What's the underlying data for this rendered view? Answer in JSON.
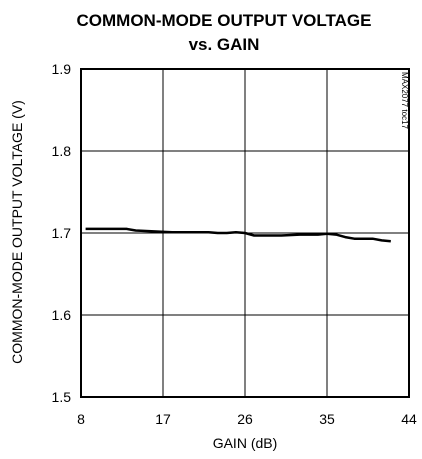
{
  "chart_data": {
    "type": "line",
    "title_line1": "COMMON-MODE OUTPUT VOLTAGE",
    "title_line2": "vs. GAIN",
    "xlabel": "GAIN (dB)",
    "ylabel": "COMMON-MODE OUTPUT VOLTAGE (V)",
    "figure_id": "MAX2077 toc17",
    "xlim": [
      8,
      44
    ],
    "ylim": [
      1.5,
      1.9
    ],
    "xticks": [
      8,
      17,
      26,
      35,
      44
    ],
    "yticks": [
      1.5,
      1.6,
      1.7,
      1.8,
      1.9
    ],
    "xtick_labels": [
      "8",
      "17",
      "26",
      "35",
      "44"
    ],
    "ytick_labels": [
      "1.5",
      "1.6",
      "1.7",
      "1.8",
      "1.9"
    ],
    "grid": true,
    "series": [
      {
        "x": [
          8.5,
          10,
          12,
          13,
          14,
          16,
          18,
          20,
          22,
          23,
          24,
          25,
          26,
          27,
          28,
          30,
          32,
          34,
          35,
          36,
          37,
          38,
          40,
          41,
          42
        ],
        "y": [
          1.705,
          1.705,
          1.705,
          1.705,
          1.703,
          1.702,
          1.701,
          1.701,
          1.701,
          1.7,
          1.7,
          1.701,
          1.7,
          1.697,
          1.697,
          1.697,
          1.698,
          1.698,
          1.699,
          1.698,
          1.695,
          1.693,
          1.693,
          1.691,
          1.69
        ]
      }
    ]
  }
}
